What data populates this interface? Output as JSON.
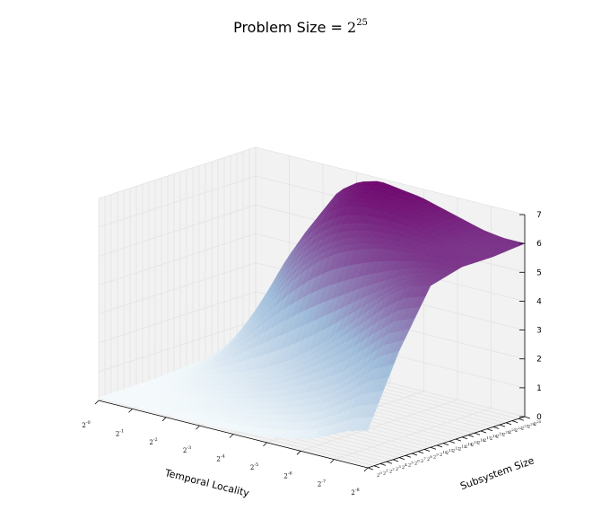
{
  "chart_data": {
    "type": "surface",
    "title_prefix": "Problem Size = ",
    "title_base": "2",
    "title_exp": "25",
    "xlabel": "Temporal Locality",
    "ylabel": "Subsystem Size",
    "zlabel": "",
    "zlim": [
      0,
      7
    ],
    "z_ticks": [
      "0",
      "1",
      "2",
      "3",
      "4",
      "5",
      "6",
      "7"
    ],
    "x_ticks": [
      "2^-0",
      "2^-1",
      "2^-2",
      "2^-3",
      "2^-4",
      "2^-5",
      "2^-6",
      "2^-7",
      "2^-8"
    ],
    "x_tick_exps": [
      "-0",
      "-1",
      "-2",
      "-3",
      "-4",
      "-5",
      "-6",
      "-7",
      "-8"
    ],
    "y_tick_exps": [
      "0",
      "1",
      "2",
      "3",
      "4",
      "5",
      "6",
      "7",
      "8",
      "9",
      "10",
      "11",
      "12",
      "13",
      "14",
      "15",
      "16",
      "17",
      "18",
      "19",
      "20",
      "21",
      "22",
      "23",
      "24",
      "25"
    ],
    "colormap": "BuPu",
    "colormap_low": "#f7fcfd",
    "colormap_mid": "#9ebcda",
    "colormap_high": "#6e016b",
    "grid": true,
    "pane_color": "#f2f2f2",
    "grid_color": "#e3e3e3",
    "description_rows": [
      [
        0.1,
        0.1,
        0.1,
        0.1,
        0.1,
        0.1,
        0.12,
        0.15,
        0.2,
        0.3,
        0.45,
        0.75,
        1.1,
        1.3
      ],
      [
        0.1,
        0.1,
        0.15,
        0.25,
        0.4,
        0.6,
        0.8,
        1.0,
        1.3,
        1.6,
        2.0,
        2.6,
        3.3,
        3.7
      ],
      [
        0.12,
        0.25,
        0.5,
        0.75,
        1.0,
        1.3,
        1.7,
        2.2,
        2.8,
        3.5,
        4.2,
        4.9,
        5.4,
        5.6
      ],
      [
        0.2,
        0.6,
        1.3,
        2.2,
        3.2,
        4.1,
        4.8,
        5.3,
        5.6,
        5.8,
        5.9,
        5.95,
        6.0,
        5.9
      ],
      [
        0.3,
        1.2,
        2.6,
        4.0,
        5.2,
        6.0,
        6.4,
        6.5,
        6.5,
        6.4,
        6.2,
        6.0,
        5.9,
        5.9
      ],
      [
        0.35,
        1.6,
        3.4,
        5.0,
        6.2,
        6.7,
        6.9,
        6.8,
        6.7,
        6.5,
        6.3,
        6.1,
        6.0,
        6.0
      ]
    ]
  }
}
